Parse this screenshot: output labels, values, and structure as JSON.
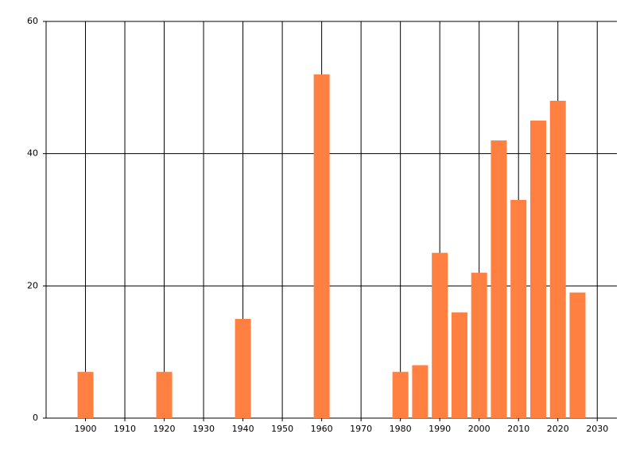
{
  "chart_data": {
    "type": "bar",
    "x": [
      1900,
      1920,
      1940,
      1960,
      1980,
      1985,
      1990,
      1995,
      2000,
      2005,
      2010,
      2015,
      2020,
      2025
    ],
    "values": [
      7,
      7,
      15,
      52,
      7,
      8,
      25,
      16,
      22,
      42,
      33,
      45,
      48,
      19
    ],
    "color": "#ff8040",
    "xlim": [
      1890,
      2035
    ],
    "xticks": [
      1900,
      1910,
      1920,
      1930,
      1940,
      1950,
      1960,
      1970,
      1980,
      1990,
      2000,
      2010,
      2020,
      2030
    ],
    "ylim": [
      0,
      60
    ],
    "yticks": [
      0,
      20,
      40,
      60
    ],
    "grid": true
  }
}
